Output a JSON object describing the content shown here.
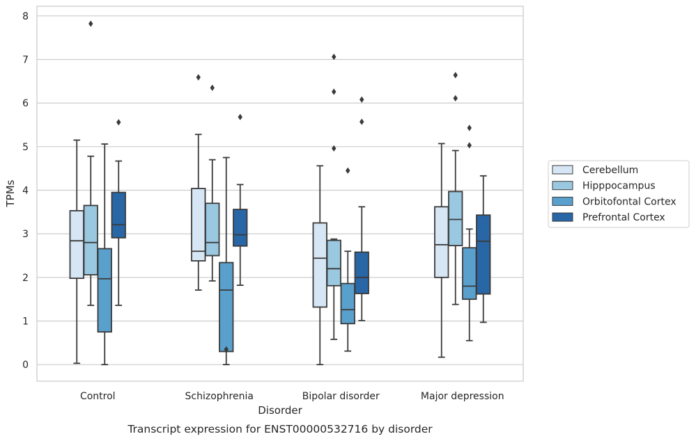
{
  "caption": "Transcript expression for ENST00000532716 by disorder",
  "chart_data": {
    "type": "box",
    "xlabel": "Disorder",
    "ylabel": "TPMs",
    "ylim": [
      -0.38,
      8.22
    ],
    "yticks": [
      0,
      1,
      2,
      3,
      4,
      5,
      6,
      7,
      8
    ],
    "grid": true,
    "legend_position": "right",
    "categories": [
      "Control",
      "Schizophrenia",
      "Bipolar disorder",
      "Major depression"
    ],
    "series": [
      {
        "name": "Cerebellum",
        "color": "#d6e6f4",
        "boxes": [
          {
            "whisker_low": 0.03,
            "q1": 1.98,
            "median": 2.84,
            "q3": 3.53,
            "whisker_high": 5.15,
            "outliers": []
          },
          {
            "whisker_low": 1.71,
            "q1": 2.38,
            "median": 2.6,
            "q3": 4.04,
            "whisker_high": 5.28,
            "outliers": [
              6.59
            ]
          },
          {
            "whisker_low": 0.0,
            "q1": 1.32,
            "median": 2.44,
            "q3": 3.25,
            "whisker_high": 4.56,
            "outliers": []
          },
          {
            "whisker_low": 0.17,
            "q1": 2.0,
            "median": 2.75,
            "q3": 3.62,
            "whisker_high": 5.07,
            "outliers": []
          }
        ]
      },
      {
        "name": "Hipppocampus",
        "color": "#9ac8e0",
        "boxes": [
          {
            "whisker_low": 1.36,
            "q1": 2.06,
            "median": 2.8,
            "q3": 3.65,
            "whisker_high": 4.78,
            "outliers": [
              7.82
            ]
          },
          {
            "whisker_low": 1.92,
            "q1": 2.5,
            "median": 2.8,
            "q3": 3.7,
            "whisker_high": 4.7,
            "outliers": [
              6.35
            ]
          },
          {
            "whisker_low": 0.58,
            "q1": 1.81,
            "median": 2.2,
            "q3": 2.85,
            "whisker_high": 2.88,
            "outliers": [
              4.96,
              6.26,
              7.06
            ]
          },
          {
            "whisker_low": 1.38,
            "q1": 2.73,
            "median": 3.33,
            "q3": 3.97,
            "whisker_high": 4.91,
            "outliers": [
              6.11,
              6.64
            ]
          }
        ]
      },
      {
        "name": "Orbitofontal Cortex",
        "color": "#5aa0cd",
        "boxes": [
          {
            "whisker_low": 0.0,
            "q1": 0.75,
            "median": 1.97,
            "q3": 2.66,
            "whisker_high": 5.06,
            "outliers": []
          },
          {
            "whisker_low": 0.0,
            "q1": 0.3,
            "median": 1.71,
            "q3": 2.34,
            "whisker_high": 4.75,
            "outliers": [
              0.35
            ]
          },
          {
            "whisker_low": 0.31,
            "q1": 0.94,
            "median": 1.26,
            "q3": 1.86,
            "whisker_high": 2.6,
            "outliers": [
              4.45
            ]
          },
          {
            "whisker_low": 0.55,
            "q1": 1.5,
            "median": 1.8,
            "q3": 2.68,
            "whisker_high": 3.11,
            "outliers": [
              5.03,
              5.43
            ]
          }
        ]
      },
      {
        "name": "Prefrontal Cortex",
        "color": "#2966a6",
        "boxes": [
          {
            "whisker_low": 1.36,
            "q1": 2.91,
            "median": 3.21,
            "q3": 3.95,
            "whisker_high": 4.67,
            "outliers": [
              5.56
            ]
          },
          {
            "whisker_low": 1.82,
            "q1": 2.72,
            "median": 2.98,
            "q3": 3.56,
            "whisker_high": 4.13,
            "outliers": [
              5.68
            ]
          },
          {
            "whisker_low": 1.01,
            "q1": 1.63,
            "median": 2.0,
            "q3": 2.58,
            "whisker_high": 3.62,
            "outliers": [
              5.57,
              6.08
            ]
          },
          {
            "whisker_low": 0.97,
            "q1": 1.62,
            "median": 2.83,
            "q3": 3.43,
            "whisker_high": 4.33,
            "outliers": []
          }
        ]
      }
    ]
  }
}
